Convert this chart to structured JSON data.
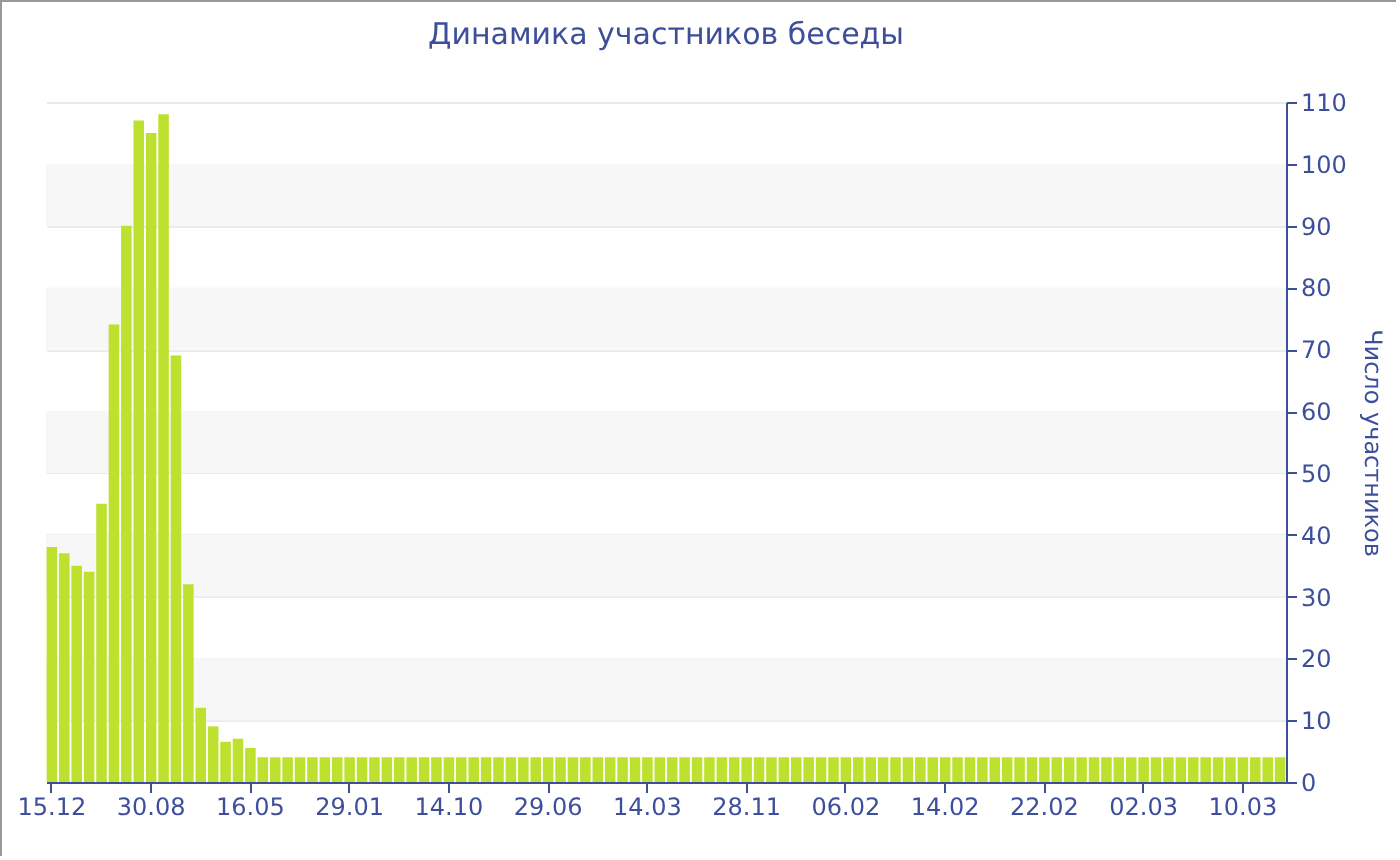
{
  "chart_data": {
    "type": "bar",
    "title": "Динамика участников беседы",
    "ylabel": "Число участников",
    "categories": [
      "15.12",
      null,
      null,
      null,
      null,
      null,
      null,
      null,
      "30.08",
      null,
      null,
      null,
      null,
      null,
      null,
      null,
      "16.05",
      null,
      null,
      null,
      null,
      null,
      null,
      null,
      "29.01",
      null,
      null,
      null,
      null,
      null,
      null,
      null,
      "14.10",
      null,
      null,
      null,
      null,
      null,
      null,
      null,
      "29.06",
      null,
      null,
      null,
      null,
      null,
      null,
      null,
      "14.03",
      null,
      null,
      null,
      null,
      null,
      null,
      null,
      "28.11",
      null,
      null,
      null,
      null,
      null,
      null,
      null,
      "06.02",
      null,
      null,
      null,
      null,
      null,
      null,
      null,
      "14.02",
      null,
      null,
      null,
      null,
      null,
      null,
      null,
      "22.02",
      null,
      null,
      null,
      null,
      null,
      null,
      null,
      "02.03",
      null,
      null,
      null,
      null,
      null,
      null,
      null,
      "10.03",
      null,
      null,
      null
    ],
    "values": [
      38,
      37,
      35,
      34,
      45,
      74,
      90,
      107,
      105,
      108,
      69,
      32,
      12,
      9,
      6.5,
      7,
      5.5,
      4,
      4,
      4,
      4,
      4,
      4,
      4,
      4,
      4,
      4,
      4,
      4,
      4,
      4,
      4,
      4,
      4,
      4,
      4,
      4,
      4,
      4,
      4,
      4,
      4,
      4,
      4,
      4,
      4,
      4,
      4,
      4,
      4,
      4,
      4,
      4,
      4,
      4,
      4,
      4,
      4,
      4,
      4,
      4,
      4,
      4,
      4,
      4,
      4,
      4,
      4,
      4,
      4,
      4,
      4,
      4,
      4,
      4,
      4,
      4,
      4,
      4,
      4,
      4,
      4,
      4,
      4,
      4,
      4,
      4,
      4,
      4,
      4,
      4,
      4,
      4,
      4,
      4,
      4,
      4,
      4,
      4,
      4
    ],
    "color": "#bde12e",
    "ylim": [
      0,
      110
    ],
    "yticks": [
      0,
      10,
      20,
      30,
      40,
      50,
      60,
      70,
      80,
      90,
      100,
      110
    ],
    "grid": true
  }
}
